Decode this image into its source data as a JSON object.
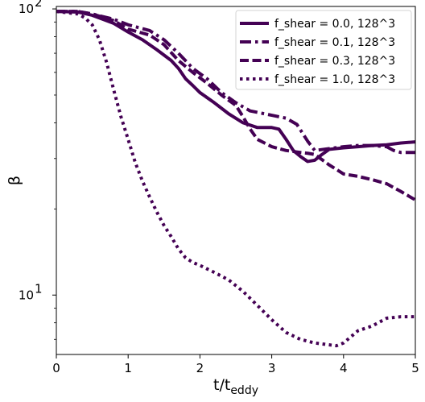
{
  "chart_data": {
    "type": "line",
    "xlabel_main": "t/t",
    "xlabel_sub": "eddy",
    "ylabel": "β",
    "xlim": [
      0,
      5
    ],
    "ylim": [
      6.2,
      102
    ],
    "yscale": "log",
    "x_ticks": [
      0,
      1,
      2,
      3,
      4,
      5
    ],
    "x_tick_labels": [
      "0",
      "1",
      "2",
      "3",
      "4",
      "5"
    ],
    "y_major_ticks": [
      10,
      100
    ],
    "y_major_tick_labels": [
      "10",
      "10"
    ],
    "y_major_tick_exponents": [
      "1",
      "2"
    ],
    "y_minor_ticks": [
      7,
      8,
      9,
      20,
      30,
      40,
      50,
      60,
      70,
      80,
      90
    ],
    "grid": false,
    "legend_position": "top-right",
    "line_color": "#440154",
    "series": [
      {
        "name": "f_shear = 0.0, 128^3",
        "dash": "solid",
        "x": [
          0,
          0.3,
          0.5,
          0.8,
          1.0,
          1.2,
          1.4,
          1.6,
          1.7,
          1.8,
          1.9,
          2.0,
          2.2,
          2.4,
          2.6,
          2.8,
          3.0,
          3.1,
          3.2,
          3.3,
          3.4,
          3.5,
          3.6,
          3.7,
          3.8,
          4.0,
          4.2,
          4.4,
          4.6,
          4.8,
          5.0
        ],
        "y": [
          98,
          97.5,
          95,
          89,
          83,
          78,
          72,
          66,
          62,
          57,
          54,
          51,
          47,
          43,
          40,
          38.5,
          38.5,
          38,
          35,
          32,
          30.5,
          29.3,
          29.6,
          31,
          32.3,
          32.7,
          33,
          33.3,
          33.5,
          34,
          34.3
        ]
      },
      {
        "name": "f_shear = 0.1, 128^3",
        "dash": "dashdot",
        "x": [
          0,
          0.3,
          0.5,
          0.8,
          1.0,
          1.3,
          1.5,
          1.7,
          1.9,
          2.1,
          2.3,
          2.5,
          2.7,
          2.9,
          3.0,
          3.2,
          3.35,
          3.5,
          3.6,
          3.8,
          4.0,
          4.2,
          4.4,
          4.6,
          4.7,
          4.8,
          5.0
        ],
        "y": [
          98,
          98,
          96,
          92,
          88,
          84,
          78,
          70,
          62,
          57,
          51,
          47,
          44,
          43,
          42.5,
          41.5,
          39.5,
          34.5,
          32,
          32.5,
          33,
          33.3,
          33.3,
          33,
          32,
          31.5,
          31.5
        ]
      },
      {
        "name": "f_shear = 0.3, 128^3",
        "dash": "dashed",
        "x": [
          0,
          0.3,
          0.5,
          0.8,
          1.0,
          1.3,
          1.5,
          1.7,
          1.9,
          2.1,
          2.3,
          2.5,
          2.6,
          2.7,
          2.8,
          3.0,
          3.2,
          3.4,
          3.5,
          3.6,
          3.8,
          4.0,
          4.2,
          4.4,
          4.6,
          4.8,
          5.0
        ],
        "y": [
          98,
          98,
          96,
          91,
          85,
          81,
          75,
          66,
          60,
          55,
          50,
          46,
          42,
          38,
          35,
          33,
          32,
          31.5,
          31.3,
          31,
          28.5,
          26.5,
          26,
          25.3,
          24.5,
          23,
          21.5
        ]
      },
      {
        "name": "f_shear = 1.0, 128^3",
        "dash": "dotted",
        "x": [
          0,
          0.3,
          0.4,
          0.5,
          0.6,
          0.7,
          0.8,
          0.9,
          1.0,
          1.1,
          1.2,
          1.3,
          1.4,
          1.5,
          1.6,
          1.7,
          1.8,
          1.9,
          2.0,
          2.2,
          2.4,
          2.6,
          2.8,
          3.0,
          3.2,
          3.4,
          3.6,
          3.8,
          3.9,
          4.0,
          4.2,
          4.4,
          4.6,
          4.8,
          5.0
        ],
        "y": [
          98,
          96,
          93,
          88,
          78,
          65,
          52,
          42,
          35,
          29,
          25,
          22,
          19.5,
          17.5,
          16,
          14.5,
          13.5,
          13,
          12.7,
          12,
          11.3,
          10.3,
          9.2,
          8.2,
          7.4,
          7.0,
          6.8,
          6.7,
          6.65,
          6.8,
          7.5,
          7.8,
          8.3,
          8.4,
          8.4
        ]
      }
    ]
  }
}
